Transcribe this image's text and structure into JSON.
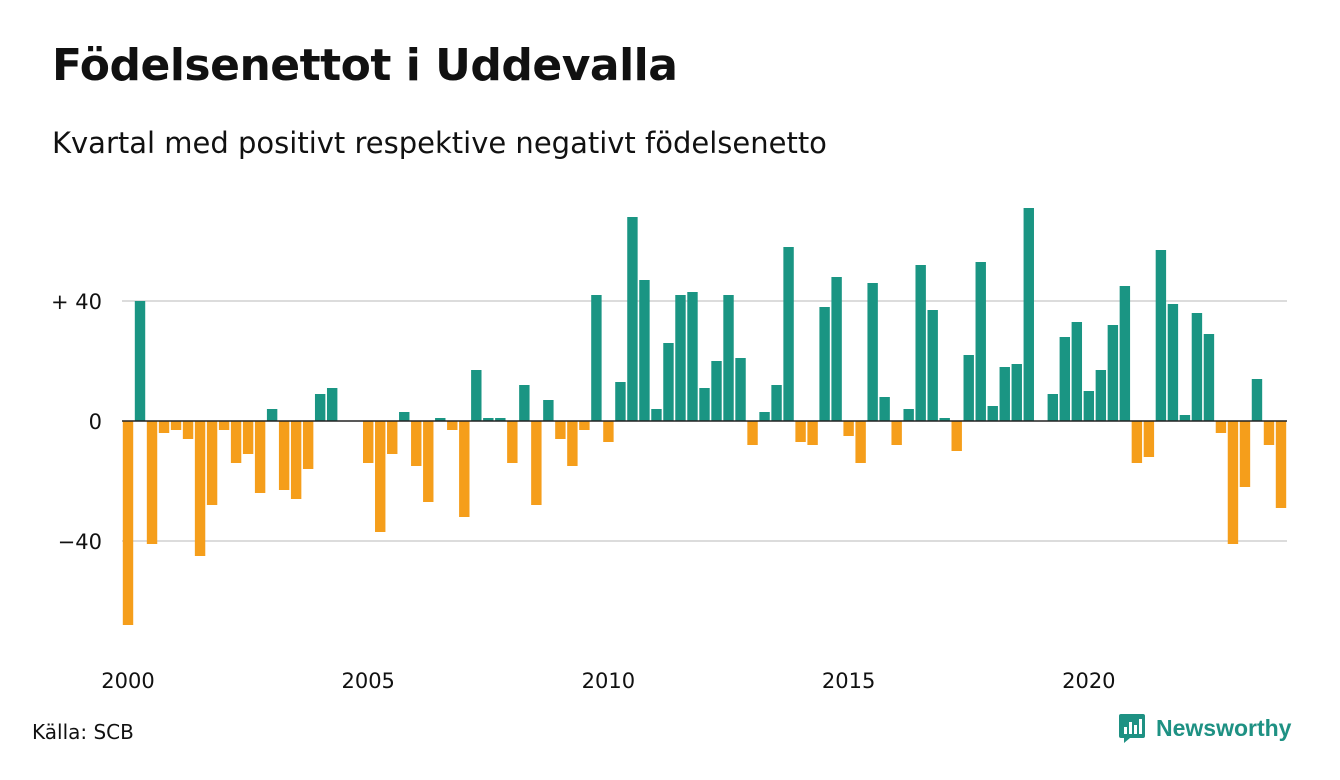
{
  "header": {
    "title": "Födelsenettot i Uddevalla",
    "subtitle": "Kvartal med positivt respektive negativt födelsenetto"
  },
  "footer": {
    "source": "Källa: SCB",
    "brand_name": "Newsworthy",
    "brand_icon": "newsworthy-logo-icon"
  },
  "colors": {
    "positive": "#1a9583",
    "negative": "#f59e1b",
    "grid": "#dcdcdc",
    "axis": "#222222",
    "brand": "#1e9183"
  },
  "chart_data": {
    "type": "bar",
    "title": "Födelsenettot i Uddevalla",
    "subtitle": "Kvartal med positivt respektive negativt födelsenetto",
    "xlabel": "",
    "ylabel": "",
    "ylim": [
      -75,
      75
    ],
    "yticks": [
      {
        "value": 40,
        "label": "+ 40"
      },
      {
        "value": 0,
        "label": "0"
      },
      {
        "value": -40,
        "label": "−40"
      }
    ],
    "xticks": [
      {
        "value": 2000,
        "label": "2000"
      },
      {
        "value": 2005,
        "label": "2005"
      },
      {
        "value": 2010,
        "label": "2010"
      },
      {
        "value": 2015,
        "label": "2015"
      },
      {
        "value": 2020,
        "label": "2020"
      }
    ],
    "x_start": "2000 Q1",
    "grid": true,
    "legend": "none",
    "values": [
      -68,
      40,
      -41,
      -4,
      -3,
      -6,
      -45,
      -28,
      -3,
      -14,
      -11,
      -24,
      4,
      -23,
      -26,
      -16,
      9,
      11,
      0,
      0,
      -14,
      -37,
      -11,
      3,
      -15,
      -27,
      1,
      -3,
      -32,
      17,
      1,
      1,
      -14,
      12,
      -28,
      7,
      -6,
      -15,
      -3,
      42,
      -7,
      13,
      68,
      47,
      4,
      26,
      42,
      43,
      11,
      20,
      42,
      21,
      -8,
      3,
      12,
      58,
      -7,
      -8,
      38,
      48,
      -5,
      -14,
      46,
      8,
      -8,
      4,
      52,
      37,
      1,
      -10,
      22,
      53,
      5,
      18,
      19,
      71,
      0,
      9,
      28,
      33,
      10,
      17,
      32,
      45,
      -14,
      -12,
      57,
      39,
      2,
      36,
      29,
      -4,
      -41,
      -22,
      14,
      -8,
      -29
    ]
  }
}
